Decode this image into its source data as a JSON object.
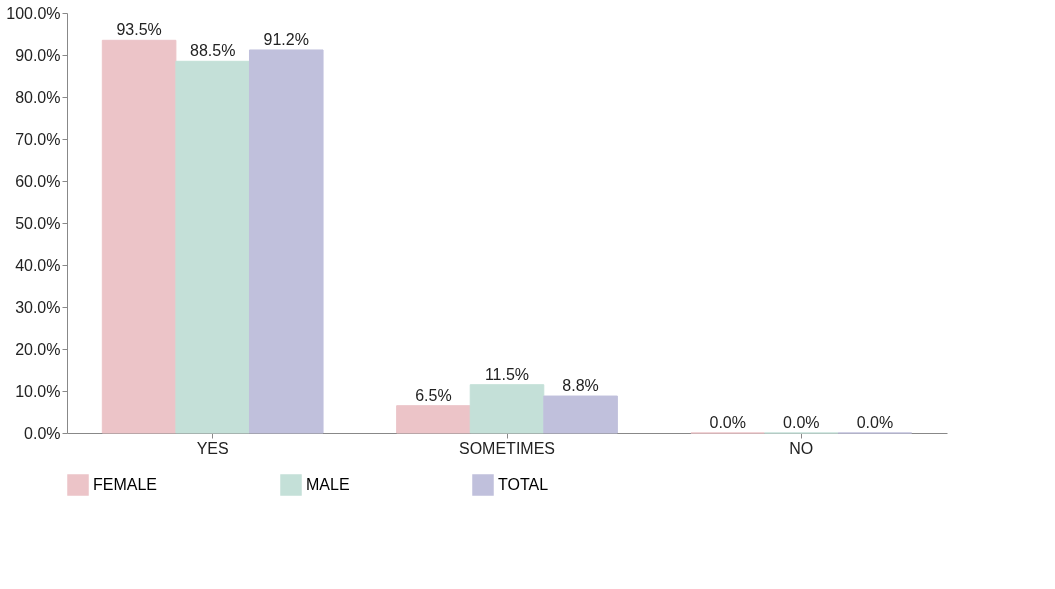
{
  "chart_data": {
    "type": "bar",
    "categories": [
      "YES",
      "SOMETIMES",
      "NO"
    ],
    "series": [
      {
        "name": "FEMALE",
        "color": "#ecc4c8",
        "values": [
          93.5,
          6.5,
          0.0
        ],
        "value_labels": [
          "93.5%",
          "6.5%",
          "0.0%"
        ]
      },
      {
        "name": "MALE",
        "color": "#c4e0d8",
        "values": [
          88.5,
          11.5,
          0.0
        ],
        "value_labels": [
          "88.5%",
          "11.5%",
          "0.0%"
        ]
      },
      {
        "name": "TOTAL",
        "color": "#c0c0dc",
        "values": [
          91.2,
          8.8,
          0.0
        ],
        "value_labels": [
          "91.2%",
          "8.8%",
          "0.0%"
        ]
      }
    ],
    "ylim": [
      0,
      100
    ],
    "yticks": [
      {
        "value": 0,
        "label": "0.0%"
      },
      {
        "value": 10,
        "label": "10.0%"
      },
      {
        "value": 20,
        "label": "20.0%"
      },
      {
        "value": 30,
        "label": "30.0%"
      },
      {
        "value": 40,
        "label": "40.0%"
      },
      {
        "value": 50,
        "label": "50.0%"
      },
      {
        "value": 60,
        "label": "60.0%"
      },
      {
        "value": 70,
        "label": "70.0%"
      },
      {
        "value": 80,
        "label": "80.0%"
      },
      {
        "value": 90,
        "label": "90.0%"
      },
      {
        "value": 100,
        "label": "100.0%"
      }
    ],
    "grid": false,
    "legend": "bottom"
  }
}
